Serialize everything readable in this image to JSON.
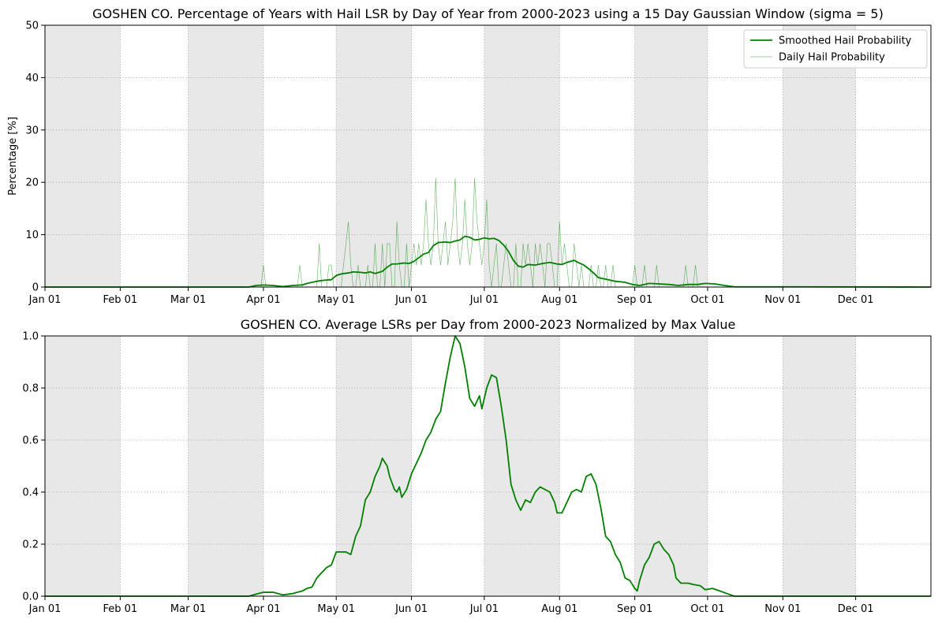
{
  "colors": {
    "smoothed": "#008000",
    "daily": "#008000",
    "shade": "#e8e8e8",
    "grid": "#b0b0b0"
  },
  "chart_data": [
    {
      "type": "line",
      "title": "GOSHEN CO. Percentage of Years with Hail LSR by Day of Year from 2000-2023 using a 15 Day Gaussian Window (sigma = 5)",
      "xlabel": "",
      "ylabel": "Percentage [%]",
      "xlim": [
        1,
        366
      ],
      "ylim": [
        0,
        50
      ],
      "x_tick_labels": [
        "Jan 01",
        "Feb 01",
        "Mar 01",
        "Apr 01",
        "May 01",
        "Jun 01",
        "Jul 01",
        "Aug 01",
        "Sep 01",
        "Oct 01",
        "Nov 01",
        "Dec 01"
      ],
      "x_tick_days": [
        1,
        32,
        60,
        91,
        121,
        152,
        182,
        213,
        244,
        274,
        305,
        335
      ],
      "y_ticks": [
        0,
        10,
        20,
        30,
        40,
        50
      ],
      "shaded_months": [
        "Jan",
        "Mar",
        "May",
        "Jul",
        "Sep",
        "Nov"
      ],
      "grid": true,
      "legend_position": "upper-right",
      "series": [
        {
          "name": "Smoothed Hail Probability",
          "style": "solid-thick",
          "points": [
            [
              1,
              0
            ],
            [
              85,
              0
            ],
            [
              88,
              0.3
            ],
            [
              91,
              0.4
            ],
            [
              95,
              0.3
            ],
            [
              99,
              0.1
            ],
            [
              103,
              0.3
            ],
            [
              107,
              0.4
            ],
            [
              109,
              0.7
            ],
            [
              111,
              0.9
            ],
            [
              113,
              1.1
            ],
            [
              116,
              1.3
            ],
            [
              119,
              1.4
            ],
            [
              121,
              2.2
            ],
            [
              123,
              2.5
            ],
            [
              126,
              2.7
            ],
            [
              128,
              2.9
            ],
            [
              131,
              2.8
            ],
            [
              133,
              2.7
            ],
            [
              135,
              2.9
            ],
            [
              137,
              2.6
            ],
            [
              140,
              3.0
            ],
            [
              142,
              3.8
            ],
            [
              144,
              4.4
            ],
            [
              146,
              4.4
            ],
            [
              149,
              4.6
            ],
            [
              151,
              4.5
            ],
            [
              153,
              4.9
            ],
            [
              155,
              5.6
            ],
            [
              157,
              6.3
            ],
            [
              159,
              6.6
            ],
            [
              161,
              7.9
            ],
            [
              163,
              8.5
            ],
            [
              166,
              8.6
            ],
            [
              168,
              8.5
            ],
            [
              170,
              8.8
            ],
            [
              172,
              9.0
            ],
            [
              174,
              9.7
            ],
            [
              176,
              9.5
            ],
            [
              178,
              9.0
            ],
            [
              180,
              9.1
            ],
            [
              182,
              9.4
            ],
            [
              184,
              9.2
            ],
            [
              186,
              9.3
            ],
            [
              188,
              8.9
            ],
            [
              190,
              8.0
            ],
            [
              192,
              6.8
            ],
            [
              194,
              5.1
            ],
            [
              196,
              4.0
            ],
            [
              198,
              3.8
            ],
            [
              200,
              4.3
            ],
            [
              203,
              4.2
            ],
            [
              206,
              4.5
            ],
            [
              209,
              4.7
            ],
            [
              212,
              4.4
            ],
            [
              214,
              4.3
            ],
            [
              216,
              4.7
            ],
            [
              219,
              5.1
            ],
            [
              221,
              4.6
            ],
            [
              223,
              4.2
            ],
            [
              225,
              3.5
            ],
            [
              227,
              2.7
            ],
            [
              229,
              1.8
            ],
            [
              232,
              1.5
            ],
            [
              236,
              1.1
            ],
            [
              240,
              0.9
            ],
            [
              243,
              0.5
            ],
            [
              246,
              0.3
            ],
            [
              250,
              0.7
            ],
            [
              254,
              0.6
            ],
            [
              258,
              0.5
            ],
            [
              262,
              0.3
            ],
            [
              266,
              0.5
            ],
            [
              270,
              0.5
            ],
            [
              273,
              0.7
            ],
            [
              277,
              0.6
            ],
            [
              281,
              0.3
            ],
            [
              285,
              0.05
            ],
            [
              366,
              0
            ]
          ]
        },
        {
          "name": "Daily Hail Probability",
          "style": "thin-light",
          "values_by_day": {
            "91": 4.2,
            "95": 0,
            "106": 4.2,
            "108": 0,
            "114": 8.3,
            "115": 0,
            "118": 4.2,
            "119": 4.2,
            "121": 0,
            "124": 4.2,
            "125": 8.3,
            "126": 12.5,
            "127": 4.2,
            "128": 0,
            "130": 4.2,
            "131": 0,
            "134": 4.2,
            "135": 0,
            "137": 8.3,
            "138": 0,
            "140": 8.3,
            "141": 0,
            "142": 8.3,
            "143": 8.3,
            "144": 0,
            "146": 12.5,
            "147": 4.2,
            "148": 0,
            "150": 8.3,
            "151": 0,
            "152": 4.2,
            "153": 8.3,
            "154": 4.2,
            "155": 8.3,
            "156": 4.2,
            "157": 8.3,
            "158": 16.7,
            "159": 8.3,
            "160": 4.2,
            "161": 8.3,
            "162": 20.8,
            "163": 8.3,
            "164": 4.2,
            "165": 8.3,
            "166": 12.5,
            "167": 4.2,
            "168": 8.3,
            "169": 12.5,
            "170": 20.8,
            "171": 8.3,
            "172": 4.2,
            "173": 8.3,
            "174": 16.7,
            "175": 8.3,
            "176": 4.2,
            "177": 8.3,
            "178": 20.8,
            "179": 12.5,
            "180": 8.3,
            "181": 4.2,
            "182": 8.3,
            "183": 16.7,
            "184": 4.2,
            "185": 0,
            "186": 4.2,
            "187": 8.3,
            "188": 0,
            "190": 4.2,
            "191": 8.3,
            "192": 4.2,
            "193": 0,
            "195": 8.3,
            "196": 0,
            "198": 8.3,
            "199": 4.2,
            "200": 8.3,
            "201": 4.2,
            "202": 0,
            "203": 8.3,
            "204": 4.2,
            "205": 8.3,
            "206": 4.2,
            "207": 0,
            "208": 8.3,
            "209": 8.3,
            "210": 4.2,
            "212": 0,
            "213": 12.5,
            "214": 4.2,
            "215": 8.3,
            "216": 4.2,
            "217": 0,
            "219": 8.3,
            "220": 4.2,
            "221": 0,
            "222": 4.2,
            "223": 0,
            "226": 4.2,
            "227": 0,
            "229": 4.2,
            "230": 0,
            "232": 4.2,
            "233": 0,
            "235": 4.2,
            "236": 0,
            "244": 4.2,
            "245": 0,
            "248": 4.2,
            "249": 0,
            "253": 4.2,
            "254": 0,
            "265": 4.2,
            "266": 0,
            "269": 4.2,
            "270": 0
          }
        }
      ]
    },
    {
      "type": "line",
      "title": "GOSHEN CO. Average LSRs per Day from 2000-2023 Normalized by Max Value",
      "xlabel": "",
      "ylabel": "",
      "xlim": [
        1,
        366
      ],
      "ylim": [
        0,
        1.0
      ],
      "x_tick_labels": [
        "Jan 01",
        "Feb 01",
        "Mar 01",
        "Apr 01",
        "May 01",
        "Jun 01",
        "Jul 01",
        "Aug 01",
        "Sep 01",
        "Oct 01",
        "Nov 01",
        "Dec 01"
      ],
      "x_tick_days": [
        1,
        32,
        60,
        91,
        121,
        152,
        182,
        213,
        244,
        274,
        305,
        335
      ],
      "y_ticks": [
        "0.0",
        "0.2",
        "0.4",
        "0.6",
        "0.8",
        "1.0"
      ],
      "shaded_months": [
        "Jan",
        "Mar",
        "May",
        "Jul",
        "Sep",
        "Nov"
      ],
      "grid": true,
      "series": [
        {
          "style": "solid-thick",
          "points": [
            [
              1,
              0
            ],
            [
              85,
              0
            ],
            [
              88,
              0.008
            ],
            [
              91,
              0.015
            ],
            [
              95,
              0.015
            ],
            [
              99,
              0.005
            ],
            [
              103,
              0.01
            ],
            [
              107,
              0.02
            ],
            [
              109,
              0.03
            ],
            [
              111,
              0.035
            ],
            [
              113,
              0.07
            ],
            [
              115,
              0.09
            ],
            [
              117,
              0.11
            ],
            [
              119,
              0.12
            ],
            [
              121,
              0.17
            ],
            [
              123,
              0.17
            ],
            [
              125,
              0.17
            ],
            [
              127,
              0.16
            ],
            [
              129,
              0.23
            ],
            [
              131,
              0.27
            ],
            [
              133,
              0.37
            ],
            [
              135,
              0.4
            ],
            [
              137,
              0.46
            ],
            [
              139,
              0.5
            ],
            [
              140,
              0.53
            ],
            [
              142,
              0.5
            ],
            [
              143,
              0.46
            ],
            [
              145,
              0.41
            ],
            [
              146,
              0.4
            ],
            [
              147,
              0.42
            ],
            [
              148,
              0.38
            ],
            [
              150,
              0.41
            ],
            [
              152,
              0.47
            ],
            [
              154,
              0.51
            ],
            [
              156,
              0.55
            ],
            [
              158,
              0.6
            ],
            [
              160,
              0.63
            ],
            [
              162,
              0.68
            ],
            [
              164,
              0.71
            ],
            [
              166,
              0.82
            ],
            [
              168,
              0.92
            ],
            [
              170,
              1.0
            ],
            [
              172,
              0.97
            ],
            [
              174,
              0.88
            ],
            [
              176,
              0.76
            ],
            [
              178,
              0.73
            ],
            [
              180,
              0.77
            ],
            [
              181,
              0.72
            ],
            [
              183,
              0.8
            ],
            [
              185,
              0.85
            ],
            [
              187,
              0.84
            ],
            [
              189,
              0.73
            ],
            [
              191,
              0.6
            ],
            [
              193,
              0.43
            ],
            [
              195,
              0.37
            ],
            [
              197,
              0.33
            ],
            [
              199,
              0.37
            ],
            [
              201,
              0.36
            ],
            [
              203,
              0.4
            ],
            [
              205,
              0.42
            ],
            [
              207,
              0.41
            ],
            [
              209,
              0.4
            ],
            [
              211,
              0.36
            ],
            [
              212,
              0.32
            ],
            [
              214,
              0.32
            ],
            [
              216,
              0.36
            ],
            [
              218,
              0.4
            ],
            [
              220,
              0.41
            ],
            [
              222,
              0.4
            ],
            [
              224,
              0.46
            ],
            [
              226,
              0.47
            ],
            [
              228,
              0.43
            ],
            [
              230,
              0.34
            ],
            [
              232,
              0.23
            ],
            [
              234,
              0.21
            ],
            [
              236,
              0.16
            ],
            [
              238,
              0.13
            ],
            [
              240,
              0.07
            ],
            [
              242,
              0.06
            ],
            [
              244,
              0.03
            ],
            [
              245,
              0.02
            ],
            [
              246,
              0.06
            ],
            [
              248,
              0.12
            ],
            [
              250,
              0.15
            ],
            [
              252,
              0.2
            ],
            [
              254,
              0.21
            ],
            [
              256,
              0.18
            ],
            [
              258,
              0.16
            ],
            [
              260,
              0.12
            ],
            [
              261,
              0.07
            ],
            [
              263,
              0.05
            ],
            [
              266,
              0.05
            ],
            [
              268,
              0.045
            ],
            [
              271,
              0.04
            ],
            [
              273,
              0.025
            ],
            [
              276,
              0.03
            ],
            [
              279,
              0.02
            ],
            [
              282,
              0.01
            ],
            [
              285,
              0
            ],
            [
              366,
              0
            ]
          ]
        }
      ]
    }
  ]
}
